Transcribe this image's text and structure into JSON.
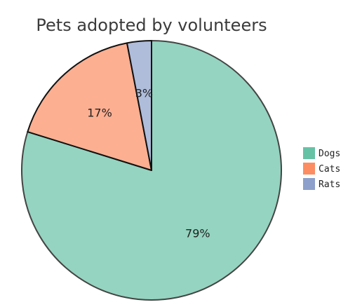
{
  "chart_data": {
    "type": "pie",
    "title": "Pets adopted by volunteers",
    "categories": [
      "Dogs",
      "Cats",
      "Rats"
    ],
    "values": [
      79,
      17,
      3
    ],
    "value_labels": [
      "79%",
      "17%",
      "3%"
    ],
    "colors": [
      "#66c2a5",
      "#fc8d62",
      "#8da0cb"
    ],
    "start_angle": "12 o'clock",
    "direction": "clockwise",
    "legend": {
      "placement": "right",
      "items": [
        "Dogs",
        "Cats",
        "Rats"
      ]
    }
  }
}
